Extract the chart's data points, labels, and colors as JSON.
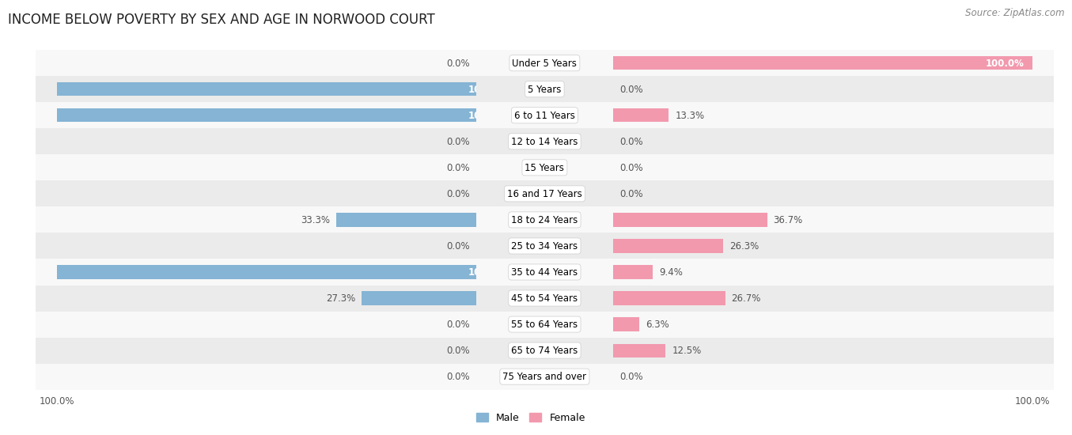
{
  "title": "INCOME BELOW POVERTY BY SEX AND AGE IN NORWOOD COURT",
  "source": "Source: ZipAtlas.com",
  "categories": [
    "Under 5 Years",
    "5 Years",
    "6 to 11 Years",
    "12 to 14 Years",
    "15 Years",
    "16 and 17 Years",
    "18 to 24 Years",
    "25 to 34 Years",
    "35 to 44 Years",
    "45 to 54 Years",
    "55 to 64 Years",
    "65 to 74 Years",
    "75 Years and over"
  ],
  "male": [
    0.0,
    100.0,
    100.0,
    0.0,
    0.0,
    0.0,
    33.3,
    0.0,
    100.0,
    27.3,
    0.0,
    0.0,
    0.0
  ],
  "female": [
    100.0,
    0.0,
    13.3,
    0.0,
    0.0,
    0.0,
    36.7,
    26.3,
    9.4,
    26.7,
    6.3,
    12.5,
    0.0
  ],
  "male_color": "#85b4d4",
  "female_color": "#f299ae",
  "bar_height": 0.52,
  "bg_row_even": "#ebebeb",
  "bg_row_odd": "#f8f8f8",
  "xlim": 100.0,
  "title_fontsize": 12,
  "source_fontsize": 8.5,
  "label_fontsize": 8.5,
  "cat_fontsize": 8.5,
  "tick_label_fontsize": 8.5,
  "legend_fontsize": 9,
  "value_label_color_inside": "#ffffff",
  "value_label_color_outside": "#555555"
}
